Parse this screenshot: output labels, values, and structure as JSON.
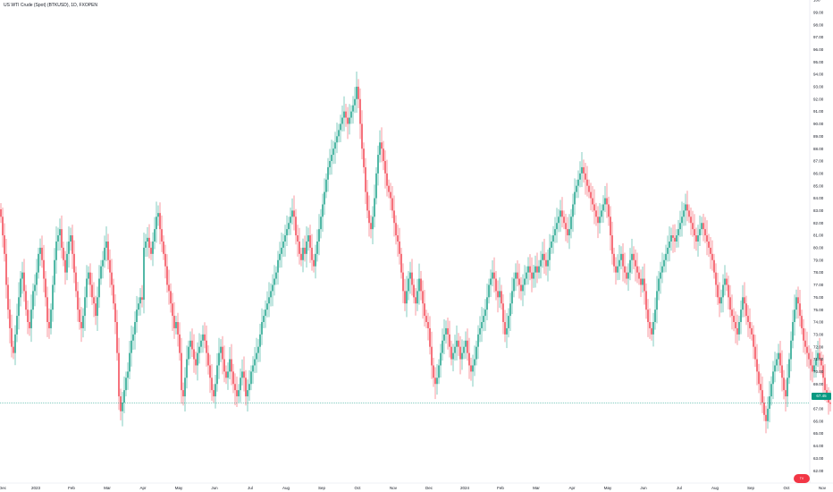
{
  "chart_data": {
    "type": "candlestick",
    "title": "US WTI Crude (Spot) (BTKUSD), 1D, FXOPEN",
    "ylim": [
      61,
      100
    ],
    "y_ticks": [
      62,
      63,
      64,
      65,
      66,
      67,
      68,
      69,
      70,
      71,
      72,
      73,
      74,
      75,
      76,
      77,
      78,
      79,
      80,
      81,
      82,
      83,
      84,
      85,
      86,
      87,
      88,
      89,
      90,
      91,
      92,
      93,
      94,
      95,
      96,
      97,
      98,
      99,
      100
    ],
    "y_tick_labels": [
      "62.00",
      "63.00",
      "64.00",
      "65.00",
      "66.00",
      "67.00",
      "68.00",
      "69.00",
      "70.00",
      "71.00",
      "72.00",
      "73.00",
      "74.00",
      "75.00",
      "76.00",
      "77.00",
      "78.00",
      "79.00",
      "80.00",
      "81.00",
      "82.00",
      "83.00",
      "84.00",
      "85.00",
      "86.00",
      "87.00",
      "88.00",
      "89.00",
      "90.00",
      "91.00",
      "92.00",
      "93.00",
      "94.00",
      "95.00",
      "96.00",
      "97.00",
      "98.00",
      "99.00",
      "100"
    ],
    "x_labels": [
      "Dec",
      "2023",
      "Feb",
      "Mar",
      "Apr",
      "May",
      "Jun",
      "Jul",
      "Aug",
      "Sep",
      "Oct",
      "Nov",
      "Dec",
      "2024",
      "Feb",
      "Mar",
      "Apr",
      "May",
      "Jun",
      "Jul",
      "Aug",
      "Sep",
      "Oct",
      "Nov"
    ],
    "x_label_month_index": [
      0,
      1,
      2,
      3,
      4,
      5,
      6,
      7,
      8,
      9,
      10,
      11,
      12,
      13,
      14,
      15,
      16,
      17,
      18,
      19,
      20,
      21,
      22,
      23
    ],
    "up_color": "#089981",
    "down_color": "#f23645",
    "current_price": 67.45,
    "current_price_label": "67.45",
    "logo_text": "TV",
    "series": [
      {
        "month": 0,
        "closes": [
          82.5,
          81.0,
          79.5,
          77.0,
          75.0,
          73.5,
          72.0,
          71.5,
          73.0,
          74.5,
          76.0,
          77.5,
          78.0,
          76.5,
          75.0,
          74.0,
          73.5,
          75.0,
          76.5,
          77.0
        ]
      },
      {
        "month": 1,
        "closes": [
          78.0,
          79.5,
          80.0,
          79.0,
          77.5,
          76.0,
          74.0,
          73.5,
          75.0,
          77.0,
          79.0,
          80.5,
          81.0,
          81.5,
          80.0,
          79.0,
          78.0,
          79.5,
          80.5,
          81.0
        ]
      },
      {
        "month": 2,
        "closes": [
          79.5,
          78.0,
          76.5,
          75.0,
          74.0,
          73.5,
          74.5,
          76.0,
          77.5,
          78.0,
          77.0,
          76.0,
          75.5,
          74.5,
          76.0,
          77.5,
          78.5,
          79.0,
          80.0,
          80.5
        ]
      },
      {
        "month": 3,
        "closes": [
          79.0,
          78.0,
          77.0,
          75.5,
          74.0,
          71.5,
          68.0,
          66.8,
          67.5,
          68.5,
          69.5,
          70.0,
          71.5,
          72.5,
          73.0,
          74.0,
          75.0,
          75.5,
          76.0,
          75.8
        ]
      },
      {
        "month": 4,
        "closes": [
          80.0,
          80.5,
          80.8,
          80.0,
          79.5,
          80.5,
          81.5,
          82.5,
          82.8,
          81.5,
          80.5,
          79.5,
          78.5,
          77.0,
          76.5,
          75.5,
          74.5,
          73.5,
          74.0,
          73.0
        ]
      },
      {
        "month": 5,
        "closes": [
          71.5,
          68.5,
          68.0,
          69.5,
          71.0,
          72.0,
          72.5,
          71.8,
          71.0,
          70.5,
          71.5,
          72.0,
          72.5,
          73.0,
          72.5,
          71.5,
          70.5,
          69.5,
          68.5,
          68.0
        ]
      },
      {
        "month": 6,
        "closes": [
          69.0,
          70.5,
          71.5,
          72.0,
          71.0,
          70.0,
          69.5,
          70.0,
          71.0,
          70.0,
          69.0,
          68.5,
          68.0,
          68.5,
          69.5,
          70.0,
          69.5,
          68.0,
          68.5,
          69.0
        ]
      },
      {
        "month": 7,
        "closes": [
          70.0,
          70.5,
          71.0,
          71.5,
          72.0,
          73.0,
          74.0,
          74.5,
          75.0,
          75.5,
          76.0,
          76.5,
          77.0,
          77.5,
          78.0,
          79.0,
          79.5,
          80.0,
          80.5,
          81.0
        ]
      },
      {
        "month": 8,
        "closes": [
          81.5,
          82.0,
          82.5,
          83.0,
          82.5,
          81.0,
          80.5,
          79.5,
          79.0,
          80.0,
          79.5,
          80.5,
          81.0,
          80.0,
          79.0,
          78.5,
          79.5,
          80.5,
          81.5,
          82.5
        ]
      },
      {
        "month": 9,
        "closes": [
          83.5,
          84.5,
          85.5,
          86.5,
          87.0,
          87.5,
          88.0,
          88.5,
          89.0,
          89.5,
          90.0,
          90.5,
          91.0,
          90.5,
          90.0,
          90.5,
          91.0,
          91.5,
          92.0,
          93.0
        ]
      },
      {
        "month": 10,
        "closes": [
          92.0,
          90.0,
          88.0,
          86.5,
          84.5,
          83.0,
          82.0,
          81.5,
          82.5,
          84.0,
          86.0,
          87.5,
          88.5,
          88.0,
          87.0,
          86.0,
          85.0,
          84.5,
          84.0,
          83.0
        ]
      },
      {
        "month": 11,
        "closes": [
          82.0,
          81.0,
          80.5,
          79.5,
          78.0,
          76.5,
          75.5,
          76.5,
          77.5,
          78.0,
          77.0,
          76.0,
          75.5,
          76.5,
          77.5,
          76.5,
          75.5,
          74.5,
          74.0,
          73.5
        ]
      },
      {
        "month": 12,
        "closes": [
          72.0,
          70.5,
          69.5,
          69.0,
          69.5,
          70.5,
          71.5,
          72.5,
          73.0,
          73.5,
          73.0,
          72.0,
          71.0,
          71.5,
          72.0,
          72.5,
          72.0,
          71.0,
          71.5,
          72.0
        ]
      },
      {
        "month": 13,
        "closes": [
          72.5,
          71.5,
          70.5,
          70.0,
          70.5,
          71.0,
          72.0,
          73.0,
          73.5,
          74.0,
          74.5,
          75.0,
          76.0,
          77.0,
          77.5,
          78.0,
          77.5,
          76.5,
          76.0,
          76.5
        ]
      },
      {
        "month": 14,
        "closes": [
          75.5,
          74.0,
          73.0,
          73.5,
          74.5,
          75.5,
          76.5,
          77.5,
          78.0,
          77.5,
          77.0,
          76.5,
          77.0,
          77.5,
          78.0,
          78.5,
          78.0,
          77.5,
          78.0,
          78.5
        ]
      },
      {
        "month": 15,
        "closes": [
          78.0,
          78.5,
          79.0,
          79.5,
          79.0,
          78.5,
          79.0,
          80.0,
          80.5,
          81.0,
          81.5,
          82.0,
          82.5,
          83.0,
          82.5,
          82.0,
          81.5,
          81.0,
          81.5,
          82.5
        ]
      },
      {
        "month": 16,
        "closes": [
          83.5,
          84.5,
          85.0,
          85.5,
          86.0,
          86.5,
          86.0,
          85.5,
          85.0,
          84.5,
          84.0,
          83.5,
          83.0,
          82.5,
          82.0,
          82.5,
          83.0,
          83.5,
          84.0,
          83.5
        ]
      },
      {
        "month": 17,
        "closes": [
          82.5,
          81.0,
          79.5,
          78.5,
          78.0,
          78.5,
          79.0,
          79.5,
          78.5,
          78.0,
          77.5,
          78.0,
          79.0,
          79.5,
          79.0,
          78.5,
          78.0,
          77.5,
          77.0,
          77.5
        ]
      },
      {
        "month": 18,
        "closes": [
          76.5,
          75.0,
          74.0,
          73.5,
          73.0,
          74.0,
          75.0,
          76.5,
          77.5,
          78.0,
          78.5,
          79.0,
          79.5,
          80.0,
          80.5,
          81.0,
          80.8,
          80.5,
          81.0,
          81.5
        ]
      },
      {
        "month": 19,
        "closes": [
          82.0,
          82.5,
          83.0,
          83.5,
          83.0,
          82.5,
          82.0,
          81.5,
          81.0,
          80.5,
          81.0,
          81.5,
          82.0,
          81.5,
          81.0,
          80.5,
          80.0,
          79.5,
          79.0,
          78.0
        ]
      },
      {
        "month": 20,
        "closes": [
          77.0,
          76.0,
          75.5,
          76.0,
          77.0,
          77.5,
          77.0,
          76.0,
          75.0,
          74.5,
          74.0,
          73.5,
          73.0,
          74.0,
          75.0,
          76.0,
          75.5,
          74.5,
          74.0,
          73.5
        ]
      },
      {
        "month": 21,
        "closes": [
          73.0,
          72.0,
          71.0,
          70.0,
          69.0,
          68.5,
          67.5,
          66.5,
          66.0,
          67.0,
          68.0,
          69.0,
          70.0,
          70.5,
          71.0,
          71.5,
          70.5,
          69.5,
          68.5,
          68.0
        ]
      },
      {
        "month": 22,
        "closes": [
          69.5,
          71.0,
          72.5,
          74.0,
          75.0,
          76.0,
          75.5,
          74.5,
          73.5,
          72.5,
          72.0,
          71.5,
          71.0,
          70.5,
          70.0,
          70.5,
          71.0,
          71.5,
          71.0,
          70.5
        ]
      },
      {
        "month": 23,
        "closes": [
          69.5,
          68.5,
          68.0,
          67.5,
          67.4
        ]
      }
    ]
  }
}
